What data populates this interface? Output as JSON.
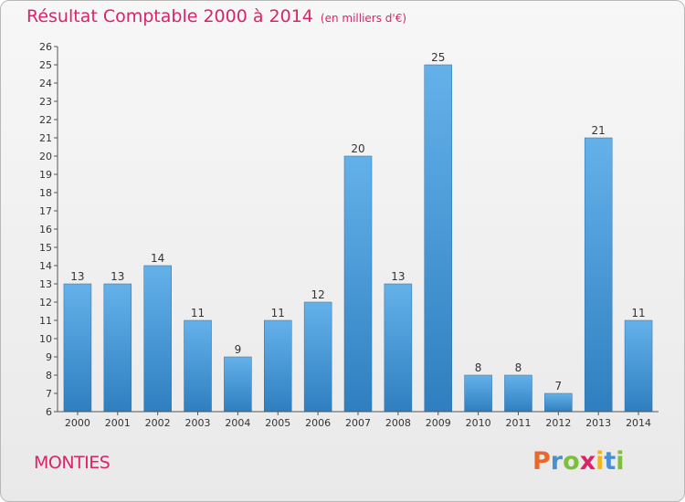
{
  "title": "Résultat Comptable 2000 à 2014",
  "subtitle": "(en milliers d'€)",
  "commune": "MONTIES",
  "logo": {
    "text": "Proxiti",
    "colors": [
      "#e8682a",
      "#4a90d0",
      "#7bbf3a",
      "#d8256a",
      "#f2b61a",
      "#4a90d0",
      "#7bbf3a"
    ]
  },
  "colors": {
    "bar_light": "#64b1ea",
    "bar_dark": "#2f7fc0",
    "title": "#d8256a"
  },
  "chart_data": {
    "type": "bar",
    "title": "Résultat Comptable 2000 à 2014",
    "subtitle": "(en milliers d'€)",
    "xlabel": "",
    "ylabel": "",
    "categories": [
      "2000",
      "2001",
      "2002",
      "2003",
      "2004",
      "2005",
      "2006",
      "2007",
      "2008",
      "2009",
      "2010",
      "2011",
      "2012",
      "2013",
      "2014"
    ],
    "values": [
      13,
      13,
      14,
      11,
      9,
      11,
      12,
      20,
      13,
      25,
      8,
      8,
      7,
      21,
      11
    ],
    "ylim": [
      6,
      26
    ],
    "yticks": [
      6,
      7,
      8,
      9,
      10,
      11,
      12,
      13,
      14,
      15,
      16,
      17,
      18,
      19,
      20,
      21,
      22,
      23,
      24,
      25,
      26
    ],
    "grid": false,
    "legend": "none"
  }
}
